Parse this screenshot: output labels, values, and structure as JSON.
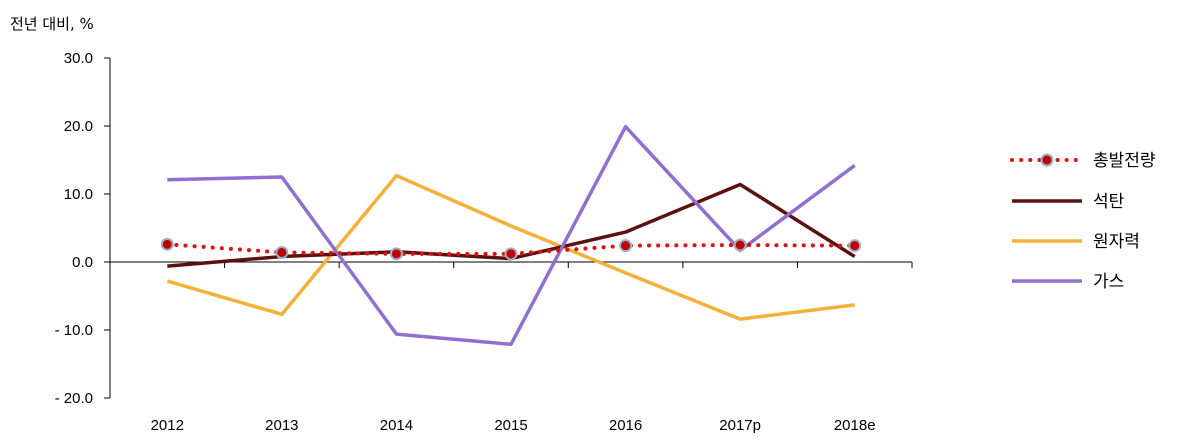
{
  "chart_data": {
    "type": "line",
    "title": "",
    "unit_label": "전년 대비, %",
    "categories": [
      "2012",
      "2013",
      "2014",
      "2015",
      "2016",
      "2017p",
      "2018e"
    ],
    "ylim": [
      -20.0,
      30.0
    ],
    "yticks": [
      "30.0",
      "20.0",
      "10.0",
      "0.0",
      "- 10.0",
      "- 20.0"
    ],
    "ytick_values": [
      30,
      20,
      10,
      0,
      -10,
      -20
    ],
    "grid": false,
    "legend_position": "right",
    "series": [
      {
        "name": "총발전량",
        "style": "dotted-markers",
        "color": "#e01010",
        "values": [
          2.6,
          1.4,
          1.2,
          1.2,
          2.4,
          2.5,
          2.4
        ]
      },
      {
        "name": "석탄",
        "style": "solid",
        "color": "#5c1010",
        "values": [
          -0.6,
          0.8,
          1.5,
          0.5,
          4.4,
          11.4,
          0.8
        ]
      },
      {
        "name": "원자력",
        "style": "solid",
        "color": "#f4b13a",
        "values": [
          -2.8,
          -7.7,
          12.7,
          5.3,
          -1.6,
          -8.4,
          -6.3
        ]
      },
      {
        "name": "가스",
        "style": "solid",
        "color": "#8f6fd0",
        "values": [
          12.1,
          12.5,
          -10.6,
          -12.1,
          19.9,
          1.7,
          14.2
        ]
      }
    ]
  }
}
